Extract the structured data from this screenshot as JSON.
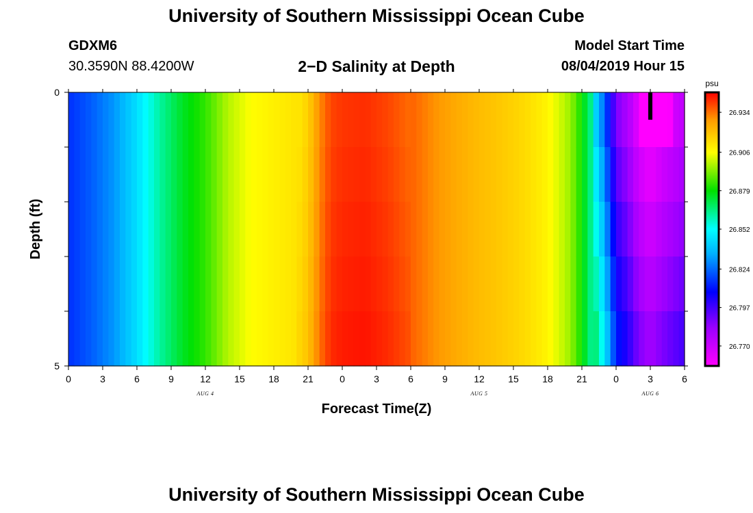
{
  "header": {
    "title_top": "University of Southern Mississippi Ocean Cube",
    "station_id": "GDXM6",
    "coordinates": "30.3590N 88.4200W",
    "plot_title": "2−D Salinity at Depth",
    "model_start_label": "Model Start Time",
    "model_start_value": "08/04/2019 Hour 15",
    "title_bottom": "University of Southern Mississippi Ocean Cube"
  },
  "chart_data": {
    "type": "heatmap",
    "title": "2-D Salinity at Depth",
    "xlabel": "Forecast Time(Z)",
    "ylabel": "Depth (ft)",
    "x_range_hours": [
      0,
      54
    ],
    "y_range": [
      0,
      5
    ],
    "y_ticks": [
      0,
      1,
      2,
      3,
      4,
      5
    ],
    "y_tick_labels": [
      "0",
      "",
      "",
      "",
      "",
      "5"
    ],
    "x_tick_hours": [
      0,
      3,
      6,
      9,
      12,
      15,
      18,
      21,
      24,
      27,
      30,
      33,
      36,
      39,
      42,
      45,
      48,
      51,
      54
    ],
    "x_tick_labels": [
      "0",
      "3",
      "6",
      "9",
      "12",
      "15",
      "18",
      "21",
      "0",
      "3",
      "6",
      "9",
      "12",
      "15",
      "18",
      "21",
      "0",
      "3",
      "6"
    ],
    "day_labels": [
      {
        "text": "AUG 4",
        "hour": 12
      },
      {
        "text": "AUG 5",
        "hour": 36
      },
      {
        "text": "AUG 6",
        "hour": 51
      }
    ],
    "colorbar": {
      "unit": "psu",
      "min": 26.756,
      "max": 26.948,
      "tick_labels": [
        "26.934",
        "26.906",
        "26.879",
        "26.852",
        "26.824",
        "26.797",
        "26.770"
      ],
      "tick_values": [
        26.934,
        26.906,
        26.879,
        26.852,
        26.824,
        26.797,
        26.77
      ]
    },
    "salinity_profile_hours": [
      0,
      2,
      4,
      6,
      8,
      10,
      12,
      14,
      16,
      18,
      20,
      21,
      22,
      23,
      24,
      26,
      28,
      30,
      32,
      34,
      36,
      38,
      40,
      42,
      44,
      45,
      46,
      47,
      48,
      49,
      50,
      51,
      52,
      54
    ],
    "salinity_profile_values": [
      26.815,
      26.822,
      26.831,
      26.845,
      26.862,
      26.875,
      26.884,
      26.898,
      26.906,
      26.909,
      26.912,
      26.918,
      26.932,
      26.941,
      26.943,
      26.944,
      26.941,
      26.936,
      26.93,
      26.925,
      26.921,
      26.918,
      26.914,
      26.908,
      26.895,
      26.88,
      26.86,
      26.835,
      26.8,
      26.79,
      26.775,
      26.768,
      26.775,
      26.785
    ],
    "depth_bands": 5,
    "surface_marker": {
      "hour": 51,
      "depth_from": 0,
      "depth_to": 0.5
    }
  }
}
